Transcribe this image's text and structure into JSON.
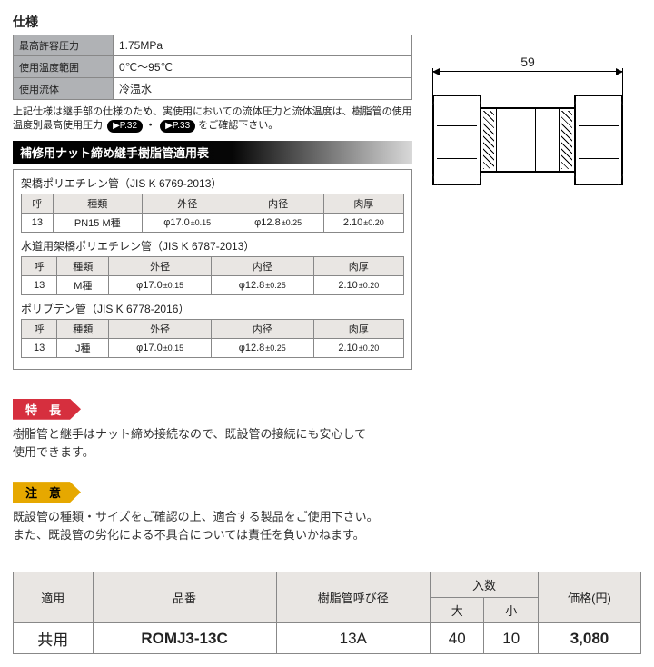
{
  "spec": {
    "title": "仕様",
    "rows": [
      {
        "label": "最高許容圧力",
        "value": "1.75MPa"
      },
      {
        "label": "使用温度範囲",
        "value": "0℃〜95℃"
      },
      {
        "label": "使用流体",
        "value": "冷温水"
      }
    ],
    "note_a": "上記仕様は継手部の仕様のため、実使用においての流体圧力と流体温度は、樹脂管の使用温度別最高使用圧力",
    "pill1": "▶P.32",
    "pill2": "▶P.33",
    "note_b": "をご確認下さい。"
  },
  "apptable": {
    "header": "補修用ナット締め継手樹脂管適用表",
    "columns": [
      "呼",
      "種類",
      "外径",
      "内径",
      "肉厚"
    ],
    "groups": [
      {
        "title": "架橋ポリエチレン管（JIS K 6769-2013）",
        "row": {
          "yobi": "13",
          "type": "PN15 M種",
          "od": "φ17.0",
          "od_tol": "±0.15",
          "id": "φ12.8",
          "id_tol": "±0.25",
          "t": "2.10",
          "t_tol": "±0.20"
        }
      },
      {
        "title": "水道用架橋ポリエチレン管（JIS K 6787-2013）",
        "row": {
          "yobi": "13",
          "type": "M種",
          "od": "φ17.0",
          "od_tol": "±0.15",
          "id": "φ12.8",
          "id_tol": "±0.25",
          "t": "2.10",
          "t_tol": "±0.20"
        }
      },
      {
        "title": "ポリブテン管（JIS K 6778-2016）",
        "row": {
          "yobi": "13",
          "type": "J種",
          "od": "φ17.0",
          "od_tol": "±0.15",
          "id": "φ12.8",
          "id_tol": "±0.25",
          "t": "2.10",
          "t_tol": "±0.20"
        }
      }
    ]
  },
  "feature": {
    "tag": "特　長",
    "text": "樹脂管と継手はナット締め接続なので、既設管の接続にも安心して\n使用できます。"
  },
  "caution": {
    "tag": "注　意",
    "text": "既設管の種類・サイズをご確認の上、適合する製品をご使用下さい。\nまた、既設管の劣化による不具合については責任を負いかねます。"
  },
  "diagram": {
    "length": "59"
  },
  "price": {
    "headers": {
      "apply": "適用",
      "code": "品番",
      "size": "樹脂管呼び径",
      "qty": "入数",
      "qty_l": "大",
      "qty_s": "小",
      "price": "価格(円)"
    },
    "row": {
      "apply": "共用",
      "code": "ROMJ3-13C",
      "size": "13A",
      "qty_l": "40",
      "qty_s": "10",
      "price": "3,080"
    }
  }
}
